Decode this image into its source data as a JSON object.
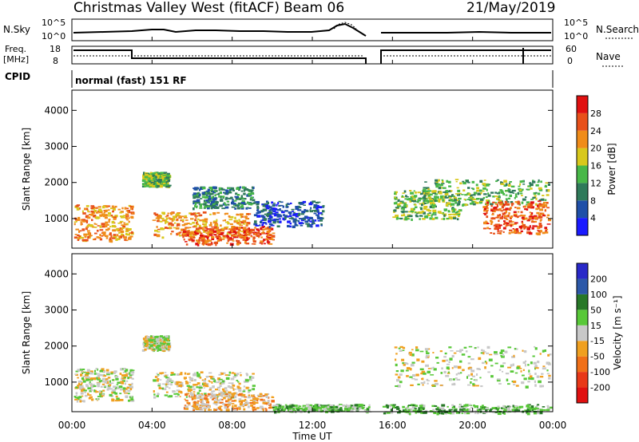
{
  "header": {
    "title": "Christmas Valley West (fitACF)",
    "beam": "Beam 06",
    "date": "21/May/2019"
  },
  "top_panels": {
    "nsky_label": "N.Sky",
    "nsky_ticks": [
      "10^5",
      "10^0"
    ],
    "nsearch_label": "N.Search",
    "nsearch_ticks": [
      "10^5",
      "10^0"
    ],
    "freq_label": [
      "Freq.",
      "[MHz]"
    ],
    "freq_ticks": [
      "18",
      "8"
    ],
    "nave_label": "Nave",
    "nave_ticks": [
      "60",
      "0"
    ],
    "cpid_label": "CPID",
    "cpid_text": "normal (fast) 151 RF"
  },
  "x_axis": {
    "label": "Time UT",
    "ticks": [
      "00:00",
      "04:00",
      "08:00",
      "12:00",
      "16:00",
      "20:00",
      "00:00"
    ]
  },
  "chart_data": [
    {
      "type": "heatmap",
      "quantity": "power",
      "ylabel": "Slant Range [km]",
      "yticks": [
        "1000",
        "2000",
        "3000",
        "4000"
      ],
      "ylim": [
        180,
        4560
      ],
      "xlim": [
        0,
        24
      ],
      "colorbar": {
        "label": "Power [dB]",
        "ticks": [
          "4",
          "8",
          "12",
          "16",
          "20",
          "24",
          "28"
        ],
        "colors": [
          "#1a1aff",
          "#1f4fa8",
          "#2f7a5a",
          "#48b848",
          "#d8c81c",
          "#f08c1a",
          "#e8501a",
          "#e01010"
        ]
      },
      "regions": [
        {
          "t0": 0.1,
          "t1": 3.0,
          "r0": 400,
          "r1": 1400,
          "level": 5
        },
        {
          "t0": 3.5,
          "t1": 4.8,
          "r0": 1900,
          "r1": 2300,
          "level": 3
        },
        {
          "t0": 4.0,
          "t1": 8.8,
          "r0": 500,
          "r1": 1200,
          "level": 5
        },
        {
          "t0": 5.5,
          "t1": 10.0,
          "r0": 300,
          "r1": 800,
          "level": 6
        },
        {
          "t0": 6.0,
          "t1": 9.0,
          "r0": 1300,
          "r1": 1900,
          "level": 2
        },
        {
          "t0": 9.0,
          "t1": 12.5,
          "r0": 800,
          "r1": 1500,
          "level": 1
        },
        {
          "t0": 16.0,
          "t1": 19.3,
          "r0": 1000,
          "r1": 1800,
          "level": 3
        },
        {
          "t0": 17.5,
          "t1": 23.8,
          "r0": 1400,
          "r1": 2100,
          "level": 3
        },
        {
          "t0": 20.5,
          "t1": 23.8,
          "r0": 600,
          "r1": 1500,
          "level": 6
        }
      ]
    },
    {
      "type": "heatmap",
      "quantity": "velocity",
      "ylabel": "Slant Range [km]",
      "yticks": [
        "1000",
        "2000",
        "3000",
        "4000"
      ],
      "ylim": [
        180,
        4560
      ],
      "xlim": [
        0,
        24
      ],
      "colorbar": {
        "label": "Velocity [m s⁻¹]",
        "ticks": [
          "200",
          "100",
          "50",
          "15",
          "-15",
          "-50",
          "-100",
          "-200"
        ],
        "colors": [
          "#2828c8",
          "#2c58a8",
          "#287828",
          "#58c838",
          "#c8c8c8",
          "#f0a020",
          "#f07018",
          "#e83818",
          "#e01010"
        ]
      },
      "regions": [
        {
          "t0": 0.1,
          "t1": 3.0,
          "r0": 500,
          "r1": 1400,
          "level": 4
        },
        {
          "t0": 3.5,
          "t1": 4.8,
          "r0": 1900,
          "r1": 2300,
          "level": 4
        },
        {
          "t0": 4.0,
          "t1": 9.0,
          "r0": 600,
          "r1": 1300,
          "level": 4
        },
        {
          "t0": 5.5,
          "t1": 10.0,
          "r0": 250,
          "r1": 700,
          "level": 5
        },
        {
          "t0": 10.0,
          "t1": 15.0,
          "r0": 200,
          "r1": 400,
          "level": 3
        },
        {
          "t0": 16.0,
          "t1": 23.9,
          "r0": 900,
          "r1": 2000,
          "level": 4
        },
        {
          "t0": 15.5,
          "t1": 23.9,
          "r0": 150,
          "r1": 400,
          "level": 3
        }
      ]
    }
  ],
  "colors": {
    "frame": "#000000",
    "background": "#ffffff"
  }
}
